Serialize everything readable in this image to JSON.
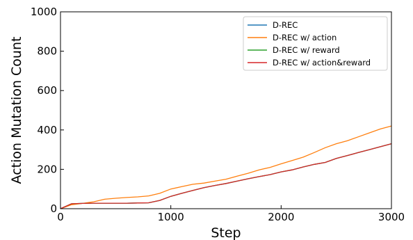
{
  "chart_data": {
    "type": "line",
    "xlabel": "Step",
    "ylabel": "Action Mutation Count",
    "xlim": [
      0,
      3000
    ],
    "ylim": [
      0,
      1000
    ],
    "xticks": [
      0,
      1000,
      2000,
      3000
    ],
    "yticks": [
      0,
      200,
      400,
      600,
      800,
      1000
    ],
    "grid": false,
    "legend": "top-right",
    "series": [
      {
        "name": "D-REC",
        "color": "#1f77b4",
        "x": [
          0,
          100,
          200,
          300,
          400,
          500,
          600,
          700,
          800,
          900,
          1000,
          1100,
          1200,
          1300,
          1400,
          1500,
          1600,
          1700,
          1800,
          1900,
          2000,
          2100,
          2200,
          2300,
          2400,
          2500,
          2600,
          2700,
          2800,
          2900,
          3000
        ],
        "y": [
          0,
          25,
          27,
          28,
          28,
          28,
          28,
          29,
          30,
          42,
          63,
          78,
          93,
          107,
          118,
          128,
          140,
          152,
          163,
          173,
          187,
          197,
          212,
          225,
          235,
          255,
          270,
          285,
          300,
          315,
          330
        ]
      },
      {
        "name": "D-REC w/ action",
        "color": "#ff7f0e",
        "x": [
          0,
          100,
          200,
          300,
          400,
          500,
          600,
          700,
          800,
          900,
          1000,
          1100,
          1200,
          1300,
          1400,
          1500,
          1600,
          1700,
          1800,
          1900,
          2000,
          2100,
          2200,
          2300,
          2400,
          2500,
          2600,
          2700,
          2800,
          2900,
          3000
        ],
        "y": [
          0,
          20,
          27,
          35,
          48,
          53,
          57,
          60,
          65,
          78,
          100,
          112,
          124,
          130,
          140,
          150,
          165,
          180,
          197,
          210,
          228,
          245,
          262,
          285,
          310,
          330,
          345,
          365,
          385,
          405,
          420
        ]
      },
      {
        "name": "D-REC w/ reward",
        "color": "#2ca02c",
        "x": [
          0,
          100,
          200,
          300,
          400,
          500,
          600,
          700,
          800,
          900,
          1000,
          1100,
          1200,
          1300,
          1400,
          1500,
          1600,
          1700,
          1800,
          1900,
          2000,
          2100,
          2200,
          2300,
          2400,
          2500,
          2600,
          2700,
          2800,
          2900,
          3000
        ],
        "y": [
          0,
          25,
          27,
          28,
          28,
          28,
          28,
          29,
          30,
          42,
          63,
          78,
          93,
          107,
          118,
          128,
          140,
          152,
          163,
          173,
          187,
          197,
          212,
          225,
          235,
          255,
          270,
          285,
          300,
          315,
          330
        ]
      },
      {
        "name": "D-REC w/ action&reward",
        "color": "#d62728",
        "x": [
          0,
          100,
          200,
          300,
          400,
          500,
          600,
          700,
          800,
          900,
          1000,
          1100,
          1200,
          1300,
          1400,
          1500,
          1600,
          1700,
          1800,
          1900,
          2000,
          2100,
          2200,
          2300,
          2400,
          2500,
          2600,
          2700,
          2800,
          2900,
          3000
        ],
        "y": [
          0,
          25,
          27,
          28,
          28,
          28,
          28,
          29,
          30,
          42,
          63,
          78,
          93,
          107,
          118,
          128,
          140,
          152,
          163,
          173,
          187,
          197,
          212,
          225,
          235,
          255,
          270,
          285,
          300,
          315,
          330
        ]
      }
    ]
  }
}
